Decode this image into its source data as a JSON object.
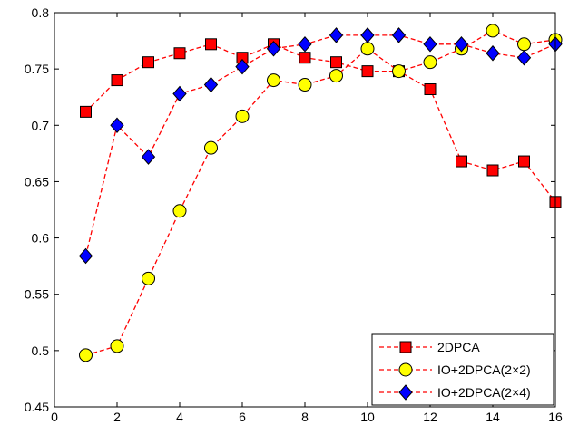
{
  "chart_data": {
    "type": "line",
    "title": "",
    "xlabel": "",
    "ylabel": "",
    "xlim": [
      0,
      16
    ],
    "ylim": [
      0.45,
      0.8
    ],
    "xticks": [
      0,
      2,
      4,
      6,
      8,
      10,
      12,
      14,
      16
    ],
    "yticks": [
      0.45,
      0.5,
      0.55,
      0.6,
      0.65,
      0.7,
      0.75,
      0.8
    ],
    "xtick_labels": [
      "0",
      "2",
      "4",
      "6",
      "8",
      "10",
      "12",
      "14",
      "16"
    ],
    "ytick_labels": [
      "0.45",
      "0.5",
      "0.55",
      "0.6",
      "0.65",
      "0.7",
      "0.75",
      "0.8"
    ],
    "grid": false,
    "legend_position": "bottom-right",
    "x": [
      1,
      2,
      3,
      4,
      5,
      6,
      7,
      8,
      9,
      10,
      11,
      12,
      13,
      14,
      15,
      16
    ],
    "series": [
      {
        "name": "2DPCA",
        "marker": "square",
        "line_color": "#ff0000",
        "marker_fill": "#ff0000",
        "line_style": "dashed",
        "values": [
          0.712,
          0.74,
          0.756,
          0.764,
          0.772,
          0.76,
          0.772,
          0.76,
          0.756,
          0.748,
          0.748,
          0.732,
          0.668,
          0.66,
          0.668,
          0.632
        ]
      },
      {
        "name": "IO+2DPCA(2×2)",
        "marker": "circle",
        "line_color": "#ff0000",
        "marker_fill": "#ffff00",
        "line_style": "dashed",
        "values": [
          0.496,
          0.504,
          0.564,
          0.624,
          0.68,
          0.708,
          0.74,
          0.736,
          0.744,
          0.768,
          0.748,
          0.756,
          0.768,
          0.784,
          0.772,
          0.776
        ]
      },
      {
        "name": "IO+2DPCA(2×4)",
        "marker": "diamond",
        "line_color": "#ff0000",
        "marker_fill": "#0000ff",
        "line_style": "dashed",
        "values": [
          0.584,
          0.7,
          0.672,
          0.728,
          0.736,
          0.752,
          0.768,
          0.772,
          0.78,
          0.78,
          0.78,
          0.772,
          0.772,
          0.764,
          0.76,
          0.772
        ]
      }
    ]
  }
}
